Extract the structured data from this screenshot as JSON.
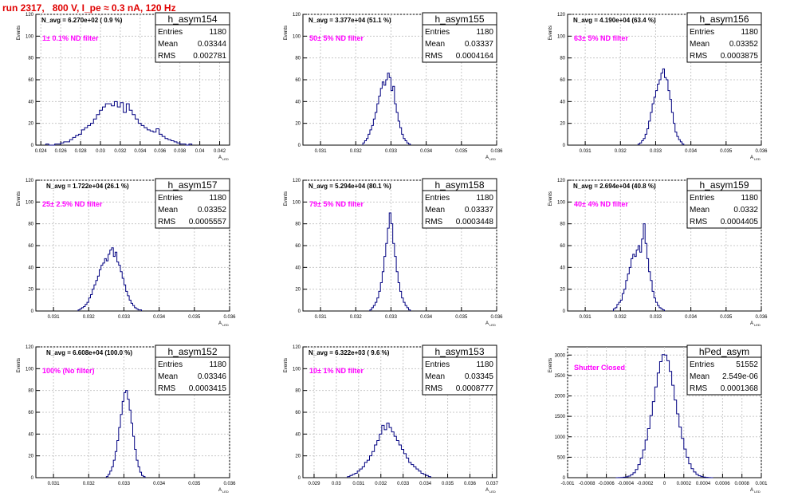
{
  "title": "run 2317,   800 V, I_pe ≈ 0.3 nA, 120 Hz",
  "ylabel": "Events",
  "xlabel": "A",
  "xlabel_sub": "LED",
  "stats_labels": [
    "Entries",
    "Mean",
    "RMS"
  ],
  "colors": {
    "hist": "#000080",
    "annotation": "#ff00ff",
    "title": "#e00000",
    "grid": "#c8c8c8"
  },
  "chart_data": [
    {
      "type": "histogram",
      "name": "h_asym154",
      "entries": "1180",
      "mean": "0.03344",
      "rms": "0.002781",
      "navg": "N_avg = 6.270e+02 ( 0.9 %)",
      "annotation": "1± 0.1% ND filter",
      "xlim": [
        0.0235,
        0.043
      ],
      "ylim": [
        0,
        120
      ],
      "yticks": [
        0,
        20,
        40,
        60,
        80,
        100,
        120
      ],
      "xticks": [
        0.024,
        0.026,
        0.028,
        0.03,
        0.032,
        0.034,
        0.036,
        0.038,
        0.04,
        0.042
      ],
      "xticklabels": [
        "0.024",
        "0.026",
        "0.028",
        "0.03",
        "0.032",
        "0.034",
        "0.036",
        "0.038",
        "0.04",
        "0.042"
      ],
      "bin_start": 0.0245,
      "bin_width": 0.0003,
      "values": [
        1,
        0,
        0,
        1,
        1,
        2,
        3,
        3,
        5,
        7,
        9,
        10,
        14,
        16,
        18,
        20,
        24,
        28,
        32,
        35,
        38,
        38,
        36,
        40,
        35,
        39,
        30,
        38,
        32,
        28,
        24,
        20,
        18,
        16,
        14,
        13,
        12,
        15,
        10,
        8,
        6,
        5,
        4,
        3,
        2,
        1,
        1,
        0,
        1
      ]
    },
    {
      "type": "histogram",
      "name": "h_asym155",
      "entries": "1180",
      "mean": "0.03337",
      "rms": "0.0004164",
      "navg": "N_avg = 3.377e+04 (51.1 %)",
      "annotation": "50± 5% ND filter",
      "xlim": [
        0.0305,
        0.036
      ],
      "ylim": [
        0,
        120
      ],
      "yticks": [
        0,
        20,
        40,
        60,
        80,
        100,
        120
      ],
      "xticks": [
        0.031,
        0.032,
        0.033,
        0.034,
        0.035,
        0.036
      ],
      "xticklabels": [
        "0.031",
        "0.032",
        "0.033",
        "0.034",
        "0.035",
        "0.036"
      ],
      "bin_start": 0.0322,
      "bin_width": 5e-05,
      "values": [
        2,
        4,
        6,
        10,
        14,
        18,
        24,
        30,
        38,
        45,
        52,
        58,
        55,
        60,
        66,
        62,
        50,
        54,
        38,
        30,
        22,
        16,
        10,
        6,
        4,
        2,
        1
      ]
    },
    {
      "type": "histogram",
      "name": "h_asym156",
      "entries": "1180",
      "mean": "0.03352",
      "rms": "0.0003875",
      "navg": "N_avg = 4.190e+04 (63.4 %)",
      "annotation": "63± 5% ND filter",
      "xlim": [
        0.0305,
        0.036
      ],
      "ylim": [
        0,
        120
      ],
      "yticks": [
        0,
        20,
        40,
        60,
        80,
        100,
        120
      ],
      "xticks": [
        0.031,
        0.032,
        0.033,
        0.034,
        0.035,
        0.036
      ],
      "xticklabels": [
        "0.031",
        "0.032",
        "0.033",
        "0.034",
        "0.035",
        "0.036"
      ],
      "bin_start": 0.0325,
      "bin_width": 5e-05,
      "values": [
        1,
        2,
        4,
        6,
        10,
        15,
        22,
        30,
        38,
        44,
        50,
        56,
        60,
        66,
        70,
        62,
        60,
        50,
        42,
        30,
        20,
        12,
        8,
        5,
        3,
        1
      ]
    },
    {
      "type": "histogram",
      "name": "h_asym157",
      "entries": "1180",
      "mean": "0.03352",
      "rms": "0.0005557",
      "navg": "N_avg = 1.722e+04 (26.1 %)",
      "annotation": "25± 2.5% ND filter",
      "xlim": [
        0.0305,
        0.036
      ],
      "ylim": [
        0,
        120
      ],
      "yticks": [
        0,
        20,
        40,
        60,
        80,
        100,
        120
      ],
      "xticks": [
        0.031,
        0.032,
        0.033,
        0.034,
        0.035,
        0.036
      ],
      "xticklabels": [
        "0.031",
        "0.032",
        "0.033",
        "0.034",
        "0.035",
        "0.036"
      ],
      "bin_start": 0.0317,
      "bin_width": 5e-05,
      "values": [
        1,
        2,
        3,
        4,
        6,
        8,
        12,
        15,
        20,
        24,
        28,
        32,
        38,
        42,
        44,
        48,
        46,
        52,
        56,
        58,
        50,
        54,
        45,
        42,
        36,
        30,
        24,
        18,
        14,
        10,
        7,
        5,
        3,
        2,
        1,
        1
      ]
    },
    {
      "type": "histogram",
      "name": "h_asym158",
      "entries": "1180",
      "mean": "0.03337",
      "rms": "0.0003448",
      "navg": "N_avg = 5.294e+04 (80.1 %)",
      "annotation": "79± 5% ND filter",
      "xlim": [
        0.0305,
        0.036
      ],
      "ylim": [
        0,
        120
      ],
      "yticks": [
        0,
        20,
        40,
        60,
        80,
        100,
        120
      ],
      "xticks": [
        0.031,
        0.032,
        0.033,
        0.034,
        0.035,
        0.036
      ],
      "xticklabels": [
        "0.031",
        "0.032",
        "0.033",
        "0.034",
        "0.035",
        "0.036"
      ],
      "bin_start": 0.0324,
      "bin_width": 5e-05,
      "values": [
        1,
        3,
        5,
        8,
        12,
        18,
        26,
        36,
        50,
        62,
        76,
        90,
        80,
        62,
        50,
        36,
        26,
        18,
        12,
        8,
        5,
        3,
        1
      ]
    },
    {
      "type": "histogram",
      "name": "h_asym159",
      "entries": "1180",
      "mean": "0.0332",
      "rms": "0.0004405",
      "navg": "N_avg = 2.694e+04 (40.8 %)",
      "annotation": "40± 4% ND filter",
      "xlim": [
        0.0305,
        0.036
      ],
      "ylim": [
        0,
        120
      ],
      "yticks": [
        0,
        20,
        40,
        60,
        80,
        100,
        120
      ],
      "xticks": [
        0.031,
        0.032,
        0.033,
        0.034,
        0.035,
        0.036
      ],
      "xticklabels": [
        "0.031",
        "0.032",
        "0.033",
        "0.034",
        "0.035",
        "0.036"
      ],
      "bin_start": 0.0318,
      "bin_width": 5e-05,
      "values": [
        2,
        3,
        6,
        8,
        10,
        16,
        20,
        28,
        34,
        40,
        48,
        52,
        50,
        56,
        60,
        54,
        66,
        80,
        62,
        48,
        36,
        28,
        18,
        12,
        8,
        5,
        3,
        2,
        1
      ]
    },
    {
      "type": "histogram",
      "name": "h_asym152",
      "entries": "1180",
      "mean": "0.03346",
      "rms": "0.0003415",
      "navg": "N_avg = 6.608e+04 (100.0 %)",
      "annotation": "100% (No filter)",
      "xlim": [
        0.0305,
        0.036
      ],
      "ylim": [
        0,
        120
      ],
      "yticks": [
        0,
        20,
        40,
        60,
        80,
        100,
        120
      ],
      "xticks": [
        0.031,
        0.032,
        0.033,
        0.034,
        0.035,
        0.036
      ],
      "xticklabels": [
        "0.031",
        "0.032",
        "0.033",
        "0.034",
        "0.035",
        "0.036"
      ],
      "bin_start": 0.0325,
      "bin_width": 5e-05,
      "values": [
        1,
        3,
        6,
        10,
        16,
        24,
        34,
        46,
        58,
        70,
        78,
        80,
        72,
        62,
        50,
        38,
        26,
        16,
        10,
        5,
        2,
        1
      ]
    },
    {
      "type": "histogram",
      "name": "h_asym153",
      "entries": "1180",
      "mean": "0.03345",
      "rms": "0.0008777",
      "navg": "N_avg = 6.322e+03 ( 9.6 %)",
      "annotation": "10± 1% ND filter",
      "xlim": [
        0.0285,
        0.0372
      ],
      "ylim": [
        0,
        120
      ],
      "yticks": [
        0,
        20,
        40,
        60,
        80,
        100,
        120
      ],
      "xticks": [
        0.029,
        0.03,
        0.031,
        0.032,
        0.033,
        0.034,
        0.035,
        0.036,
        0.037
      ],
      "xticklabels": [
        "0.029",
        "0.03",
        "0.031",
        "0.032",
        "0.033",
        "0.034",
        "0.035",
        "0.036",
        "0.037"
      ],
      "bin_start": 0.0305,
      "bin_width": 0.00011,
      "values": [
        1,
        2,
        3,
        4,
        6,
        8,
        10,
        14,
        16,
        20,
        24,
        30,
        34,
        40,
        48,
        44,
        50,
        46,
        42,
        38,
        34,
        30,
        26,
        22,
        18,
        14,
        12,
        10,
        8,
        6,
        4,
        3,
        2,
        1
      ]
    },
    {
      "type": "histogram",
      "name": "hPed_asym",
      "entries": "51552",
      "mean": "2.549e-06",
      "rms": "0.0001368",
      "navg": "",
      "annotation": "Shutter Closed",
      "xlim": [
        -0.001,
        0.001
      ],
      "ylim": [
        0,
        3200
      ],
      "yticks": [
        0,
        500,
        1000,
        1500,
        2000,
        2500,
        3000
      ],
      "xticks": [
        -0.001,
        -0.0008,
        -0.0006,
        -0.0004,
        -0.0002,
        0,
        0.0002,
        0.0004,
        0.0006,
        0.0008,
        0.001
      ],
      "xticklabels": [
        "-0.001",
        "-0.0008",
        "-0.0006",
        "-0.0004",
        "-0.0002",
        "0",
        "0.0002",
        "0.0004",
        "0.0006",
        "0.0008",
        "0.001"
      ],
      "bin_start": -0.0005,
      "bin_width": 2.5e-05,
      "values": [
        1,
        3,
        6,
        12,
        22,
        40,
        70,
        120,
        200,
        320,
        480,
        680,
        920,
        1200,
        1520,
        1860,
        2220,
        2560,
        2840,
        3010,
        3000,
        2860,
        2600,
        2260,
        1900,
        1560,
        1240,
        960,
        700,
        500,
        340,
        220,
        140,
        80,
        46,
        26,
        14,
        7,
        3,
        1
      ]
    }
  ]
}
